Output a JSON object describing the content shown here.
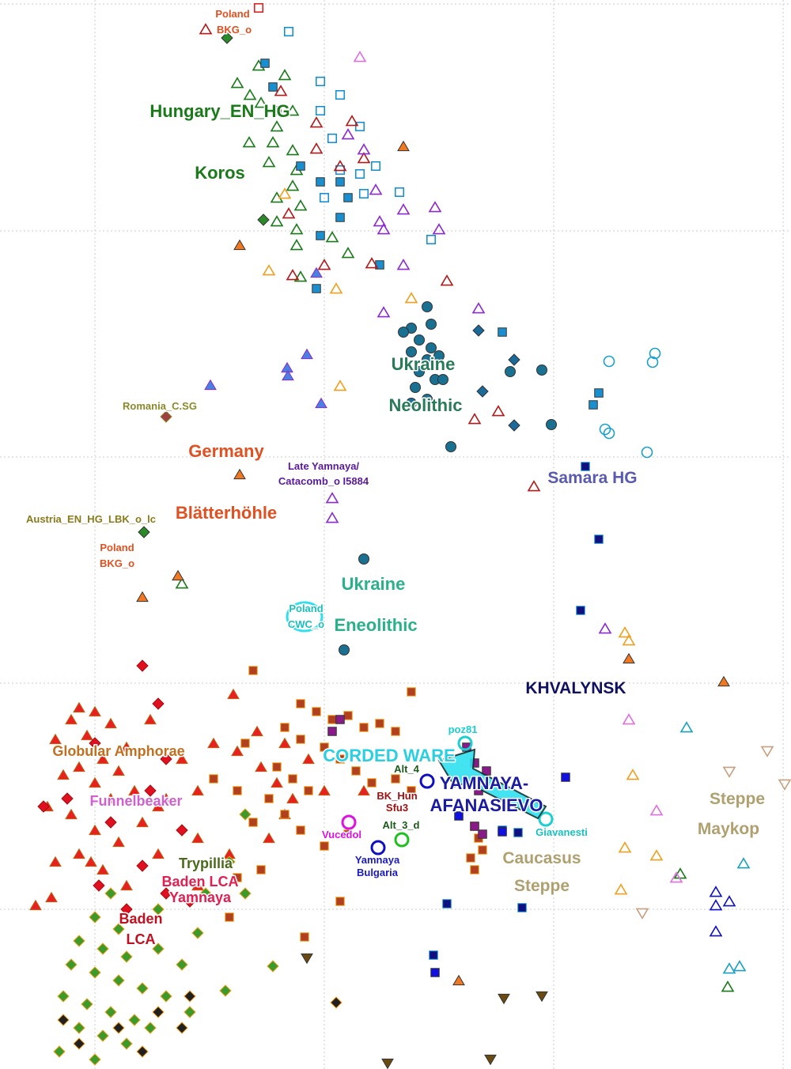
{
  "chart_data": {
    "type": "scatter",
    "xlim": [
      0,
      100
    ],
    "ylim": [
      0,
      135.2
    ],
    "xticks": [
      12,
      41,
      70,
      99
    ],
    "yticks": [
      134.7,
      106,
      77.4,
      48.8,
      20.2
    ],
    "grid": true,
    "annotations": [
      "Poland",
      "BKG_o",
      "Hungary_EN_HG",
      "Koros",
      "Ukraine",
      "Neolithic",
      "Romania_C.SG",
      "Germany",
      "Late Yamnaya/",
      "Catacomb_o I5884",
      "Samara HG",
      "Blätterhöhle",
      "Austria_EN_HG_LBK_o_lc",
      "Poland",
      "BKG_o",
      "Ukraine",
      "Eneolithic",
      "Poland",
      "CWC_o",
      "KHVALYNSK",
      "Globular Amphorae",
      "poz81",
      "CORDED WARE",
      "Alt_4",
      "YAMNAYA-",
      "AFANASIEVO",
      "BK_Hun",
      "Sfu3",
      "Steppe",
      "Maykop",
      "Funnelbeaker",
      "Alt_3_d",
      "Vucedol",
      "Giavanesti",
      "Caucasus",
      "Steppe",
      "Yamnaya",
      "Bulgaria",
      "Trypillia",
      "Baden LCA",
      "Yamnaya",
      "Baden",
      "LCA"
    ],
    "series": [
      {
        "marker": "triangle-open",
        "color": "#1a7a1a",
        "x": [
          32.7,
          30,
          31.6,
          36,
          33,
          37,
          35,
          31.5,
          34.5,
          37,
          34,
          37.5,
          37,
          35,
          38,
          37.5,
          35,
          37.5,
          38,
          44,
          42,
          23,
          92,
          86
        ],
        "y": [
          126.9,
          124.7,
          123.2,
          125.7,
          122.2,
          121.2,
          119.2,
          117.2,
          117.2,
          116.2,
          114.7,
          113.7,
          111.7,
          110.2,
          109.2,
          106.2,
          107.2,
          104.2,
          100.2,
          103.2,
          105.2,
          61.4,
          10.4,
          24.7
        ]
      },
      {
        "marker": "square-open",
        "color": "#1a8fd0",
        "x": [
          36.5,
          40.5,
          43,
          40.5,
          45.5,
          42,
          47.5,
          45.5,
          43,
          46,
          50.5,
          54.5,
          41
        ],
        "y": [
          131.2,
          124.9,
          123.2,
          121.2,
          119.2,
          117.7,
          114.2,
          113.2,
          113.7,
          110.7,
          110.9,
          104.9,
          110.2
        ]
      },
      {
        "marker": "square",
        "color": "#1a8fd0",
        "x": [
          33.5,
          34.5,
          35,
          38,
          40.5,
          43,
          44,
          40.5,
          43,
          48,
          40,
          63.5,
          75.7,
          75
        ],
        "y": [
          127.2,
          124.2,
          121.2,
          114.2,
          112.2,
          112.2,
          110.2,
          105.4,
          107.7,
          101.7,
          98.7,
          93.2,
          85.5,
          84
        ]
      },
      {
        "marker": "triangle-open",
        "color": "#b01a1a",
        "x": [
          26,
          35.5,
          40,
          44.5,
          40,
          43,
          46,
          36.5,
          37,
          47,
          56.5,
          60,
          63,
          67.5,
          41
        ],
        "y": [
          131.5,
          123.7,
          119.7,
          119.9,
          116.4,
          114.2,
          115.2,
          108.2,
          100.4,
          101.9,
          99.7,
          82.2,
          83.2,
          73.7,
          101.7
        ]
      },
      {
        "marker": "triangle-open",
        "color": "#8a2ad0",
        "x": [
          44,
          46,
          48,
          48.5,
          51,
          55,
          55.5,
          48.5,
          51,
          60.5,
          42,
          42,
          76.5,
          47.5
        ],
        "y": [
          118.2,
          116.3,
          107.2,
          106.2,
          108.7,
          109,
          106.2,
          95.7,
          101.7,
          96.2,
          72.2,
          69.7,
          55.7,
          111.2
        ]
      },
      {
        "marker": "triangle-open",
        "color": "#f0a020",
        "x": [
          36,
          34,
          42.5,
          52,
          43,
          79,
          79.5,
          79,
          83,
          78.5,
          80
        ],
        "y": [
          110.7,
          101,
          98.7,
          97.5,
          86.4,
          55.2,
          54.2,
          28,
          27,
          22.7,
          37.2
        ]
      },
      {
        "marker": "triangle",
        "color": "#f07820",
        "x": [
          51,
          30.3,
          30.3,
          18,
          22.5,
          79.5,
          91.5,
          58
        ],
        "y": [
          116.7,
          104.2,
          75.2,
          59.7,
          62.4,
          51.9,
          49,
          11.2
        ]
      },
      {
        "marker": "circle",
        "color": "#1a7090",
        "x": [
          54,
          52,
          54.5,
          51,
          53,
          54.5,
          52,
          54,
          55.5,
          53,
          55,
          52.5,
          54,
          56,
          52,
          57,
          64.5,
          68.5,
          69.7,
          46,
          43.5
        ],
        "y": [
          96.4,
          93.7,
          94.2,
          93.2,
          92.2,
          91.2,
          90.7,
          89.7,
          90.2,
          88.2,
          87.2,
          86.2,
          84.7,
          87.2,
          84.2,
          78.7,
          88.2,
          88.4,
          81.5,
          64.5,
          53
        ]
      },
      {
        "marker": "diamond",
        "color": "#1a6a9a",
        "x": [
          60.5,
          65,
          61,
          65
        ],
        "y": [
          93.4,
          89.7,
          85.7,
          81.4
        ]
      },
      {
        "marker": "circle-open",
        "color": "#1aa0d0",
        "x": [
          77,
          82.5,
          82.8,
          76.5,
          77,
          81.8
        ],
        "y": [
          89.5,
          89.4,
          90.5,
          80.9,
          80.4,
          78
        ]
      },
      {
        "marker": "triangle",
        "color": "#4a80e0",
        "edge": "#8a2ad0",
        "x": [
          38.8,
          36.3,
          36.4,
          26.6,
          40.6,
          40
        ],
        "y": [
          90.4,
          88.7,
          87.7,
          86.5,
          84.2,
          100.7
        ]
      },
      {
        "marker": "square",
        "color": "#101080",
        "edge": "#1a8fd0",
        "x": [
          74,
          75.7,
          73.4,
          63.5,
          65.5,
          66,
          56.5,
          54.8
        ],
        "y": [
          76.2,
          67,
          58,
          30.2,
          29.9,
          20.4,
          20.9,
          14.4
        ]
      },
      {
        "marker": "triangle",
        "color": "#e82020",
        "edge": "#c06010",
        "x": [
          10,
          12,
          9,
          14,
          11,
          7,
          16,
          13,
          10,
          15,
          8,
          12,
          17,
          14,
          6,
          9,
          20,
          18,
          12,
          15,
          10,
          7,
          13,
          16,
          20,
          25,
          21,
          23,
          27,
          19,
          25,
          11.5,
          30,
          33,
          35,
          37,
          29.5,
          32.5,
          36,
          39,
          41,
          36,
          34,
          25,
          46,
          29,
          6.5,
          4.5
        ],
        "y": [
          45.7,
          45.2,
          44.2,
          43.7,
          42.2,
          41.7,
          40.7,
          39.2,
          38.2,
          37.7,
          37.2,
          36.2,
          35.2,
          34.2,
          33.2,
          32.2,
          33.2,
          31.2,
          30.2,
          28.7,
          27.2,
          26.2,
          25.2,
          23.2,
          27.2,
          29.2,
          34.2,
          39.2,
          41.2,
          44.2,
          35.2,
          26.2,
          40.2,
          38.2,
          36.2,
          34.2,
          47.4,
          42.7,
          41.2,
          39.2,
          35.2,
          32.2,
          29.2,
          23.2,
          35.2,
          27.2,
          21.7,
          20.7
        ]
      },
      {
        "marker": "diamond",
        "color": "#e01020",
        "edge": "#a01010",
        "x": [
          20,
          18,
          5.5,
          8.5,
          14,
          23,
          18,
          21,
          16,
          12.5,
          24,
          19,
          21,
          12
        ],
        "y": [
          46.2,
          51,
          33.2,
          34.2,
          31.2,
          30.2,
          25.7,
          22.2,
          20.2,
          23.2,
          21.2,
          35.2,
          39.2,
          41.2
        ]
      },
      {
        "marker": "square",
        "color": "#b04020",
        "edge": "#f0a020",
        "x": [
          38,
          40,
          42,
          44,
          46,
          48,
          50,
          36,
          38,
          41,
          43,
          45,
          47,
          50,
          52,
          35,
          37,
          39,
          34,
          36,
          38,
          32,
          30,
          31,
          27,
          52,
          32,
          44,
          41,
          43,
          38.5,
          33,
          30,
          60,
          60.5,
          61,
          59.5,
          60,
          29
        ],
        "y": [
          46.2,
          45.2,
          44.2,
          44.7,
          43.2,
          43.7,
          42.7,
          43.2,
          41.7,
          40.7,
          39.2,
          37.7,
          36.2,
          36.7,
          35.2,
          38.2,
          36.7,
          35.2,
          34.2,
          32.2,
          30.2,
          31.2,
          35.2,
          41.2,
          36.7,
          47.7,
          50.4,
          29.7,
          28.2,
          21.2,
          16.7,
          25.2,
          24.2,
          30.7,
          29.2,
          27.7,
          26.7,
          25.2,
          19.2
        ]
      },
      {
        "marker": "diamond",
        "color": "#3a9a2a",
        "edge": "#f0a020",
        "x": [
          14,
          12,
          15,
          10,
          13,
          16,
          9,
          12,
          15,
          18,
          8,
          11,
          14,
          17,
          10,
          13,
          16,
          7.5,
          12,
          20,
          23,
          21,
          25,
          19,
          24,
          28.5,
          31,
          34.5,
          31,
          29,
          20,
          26
        ],
        "y": [
          22.2,
          19.2,
          17.7,
          16.2,
          15.2,
          14.2,
          13.2,
          12.2,
          11.2,
          10.2,
          9.2,
          8.2,
          7.2,
          6.2,
          5.2,
          4.2,
          3.2,
          2.2,
          1.2,
          15.2,
          13.2,
          9.2,
          17.2,
          5.2,
          7.2,
          9.9,
          22.2,
          13,
          32.2,
          26.2,
          20.2,
          22.2
        ]
      },
      {
        "marker": "diamond",
        "color": "#202020",
        "edge": "#f0a020",
        "x": [
          8,
          10,
          15,
          20,
          24,
          23,
          42.5,
          18
        ],
        "y": [
          6.2,
          3.2,
          5.2,
          7.2,
          9.2,
          5.2,
          8.4,
          2.2
        ]
      },
      {
        "marker": "triangle-down",
        "color": "#6a4a10",
        "x": [
          38.8,
          63.7,
          68.5,
          62,
          49
        ],
        "y": [
          14,
          8.9,
          9.2,
          1.2,
          0.7
        ]
      },
      {
        "marker": "triangle-down-open",
        "color": "#c8a080",
        "x": [
          97,
          92.2,
          99.2,
          81.2
        ],
        "y": [
          40.2,
          37.6,
          36,
          19.7
        ]
      },
      {
        "marker": "triangle-open",
        "color": "#1010c0",
        "x": [
          90.5,
          90.5,
          92.2,
          90.5
        ],
        "y": [
          22.4,
          20.7,
          21.2,
          17.4
        ]
      },
      {
        "marker": "triangle-open",
        "color": "#1aa0c0",
        "x": [
          86.8,
          94,
          92.2,
          93.5
        ],
        "y": [
          43.2,
          26,
          12.7,
          13
        ]
      },
      {
        "marker": "triangle-open",
        "color": "#e070e0",
        "x": [
          45.5,
          83,
          85.5,
          79.5
        ],
        "y": [
          128,
          32.7,
          24.2,
          44.2
        ]
      },
      {
        "marker": "square",
        "color": "#8a1a8a",
        "x": [
          59,
          60,
          61.5,
          60.5,
          60,
          61,
          43,
          42
        ],
        "y": [
          40.7,
          38.7,
          37.7,
          35.2,
          30.7,
          29.7,
          44.2,
          42.7
        ]
      },
      {
        "marker": "square",
        "color": "#1010e0",
        "x": [
          63.5,
          58,
          71.5,
          55
        ],
        "y": [
          30,
          32,
          36.9,
          12.2
        ]
      },
      {
        "marker": "square-open",
        "color": "#e02020",
        "x": [
          32.7
        ],
        "y": [
          134.2
        ]
      },
      {
        "marker": "diamond",
        "color": "#2a8a2a",
        "x": [
          28.7,
          33.3,
          18.2
        ],
        "y": [
          130.4,
          107.4,
          67.9
        ]
      },
      {
        "marker": "diamond",
        "color": "#a04040",
        "edge": "#8a8a2a",
        "x": [
          21
        ],
        "y": [
          82.5
        ]
      },
      {
        "marker": "circle-big",
        "color": "#1ad0d0",
        "x": [
          58.8,
          69
        ],
        "y": [
          41.2,
          31.6
        ]
      },
      {
        "marker": "circle-big",
        "color": "#e010e0",
        "x": [
          44.1
        ],
        "y": [
          31.2
        ]
      },
      {
        "marker": "circle-big",
        "color": "#1010c0",
        "x": [
          47.8,
          54
        ],
        "y": [
          28,
          36.4
        ]
      },
      {
        "marker": "circle-big",
        "color": "#20c020",
        "x": [
          50.8
        ],
        "y": [
          29
        ]
      }
    ]
  }
}
